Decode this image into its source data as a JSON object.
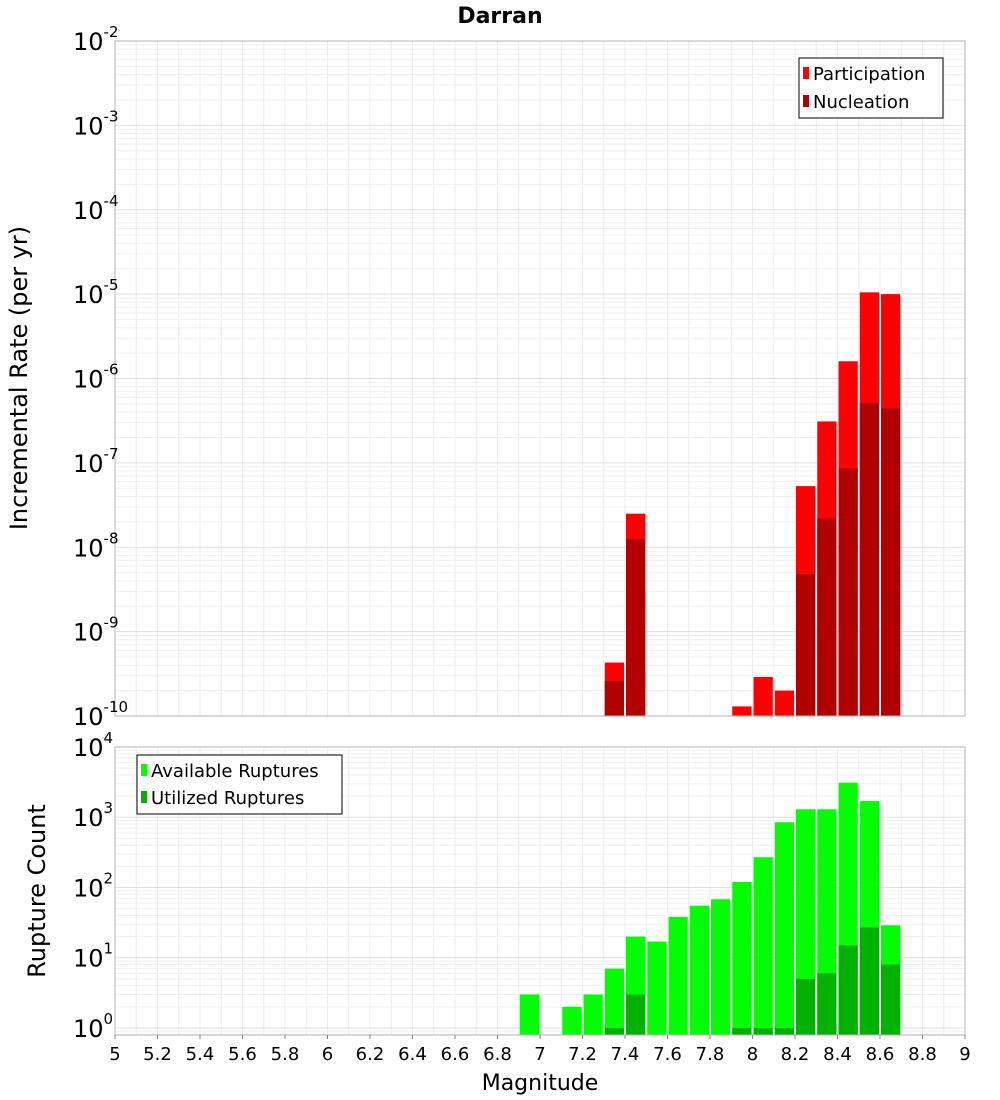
{
  "title": "Darran",
  "colors": {
    "participation": "#ff0000",
    "nucleation": "#b20000",
    "available": "#00ff00",
    "utilized": "#00b200",
    "grid": "#e6e6e6",
    "frame": "#b4b4b4"
  },
  "chart_data": [
    {
      "type": "bar",
      "panel": "top",
      "title": "Darran",
      "xlabel": "",
      "ylabel": "Incremental Rate (per yr)",
      "yscale": "log",
      "xlim": [
        5,
        9
      ],
      "ylim_exponents": [
        -10,
        -2
      ],
      "ytick_exponents": [
        -10,
        -9,
        -8,
        -7,
        -6,
        -5,
        -4,
        -3,
        -2
      ],
      "ytick_base": "10",
      "grid": true,
      "legend_position": "top-right",
      "bar_width": 0.1,
      "series": [
        {
          "name": "Participation",
          "color": "#ff0000",
          "points": [
            {
              "x": 7.35,
              "y": 4.3e-10
            },
            {
              "x": 7.45,
              "y": 2.5e-08
            },
            {
              "x": 7.95,
              "y": 1.3e-10
            },
            {
              "x": 8.05,
              "y": 2.9e-10
            },
            {
              "x": 8.15,
              "y": 2e-10
            },
            {
              "x": 8.25,
              "y": 5.3e-08
            },
            {
              "x": 8.35,
              "y": 3.1e-07
            },
            {
              "x": 8.45,
              "y": 1.6e-06
            },
            {
              "x": 8.55,
              "y": 1.05e-05
            },
            {
              "x": 8.65,
              "y": 1e-05
            }
          ]
        },
        {
          "name": "Nucleation",
          "color": "#b20000",
          "points": [
            {
              "x": 7.35,
              "y": 2.6e-10
            },
            {
              "x": 7.45,
              "y": 1.25e-08
            },
            {
              "x": 8.25,
              "y": 4.8e-09
            },
            {
              "x": 8.35,
              "y": 2.2e-08
            },
            {
              "x": 8.45,
              "y": 8.6e-08
            },
            {
              "x": 8.55,
              "y": 5.1e-07
            },
            {
              "x": 8.65,
              "y": 4.4e-07
            }
          ]
        }
      ]
    },
    {
      "type": "bar",
      "panel": "bottom",
      "xlabel": "Magnitude",
      "ylabel": "Rupture Count",
      "yscale": "log",
      "xlim": [
        5,
        9
      ],
      "ylim_exponents": [
        -0.1,
        4
      ],
      "ytick_exponents": [
        0,
        1,
        2,
        3,
        4
      ],
      "ytick_base": "10",
      "xticks": [
        "5",
        "5.2",
        "5.4",
        "5.6",
        "5.8",
        "6",
        "6.2",
        "6.4",
        "6.6",
        "6.8",
        "7",
        "7.2",
        "7.4",
        "7.6",
        "7.8",
        "8",
        "8.2",
        "8.4",
        "8.6",
        "8.8",
        "9"
      ],
      "grid": true,
      "legend_position": "top-left",
      "bar_width": 0.1,
      "series": [
        {
          "name": "Available Ruptures",
          "color": "#00ff00",
          "points": [
            {
              "x": 6.95,
              "y": 3
            },
            {
              "x": 7.15,
              "y": 2
            },
            {
              "x": 7.25,
              "y": 3
            },
            {
              "x": 7.35,
              "y": 7
            },
            {
              "x": 7.45,
              "y": 20
            },
            {
              "x": 7.55,
              "y": 17
            },
            {
              "x": 7.65,
              "y": 38
            },
            {
              "x": 7.75,
              "y": 55
            },
            {
              "x": 7.85,
              "y": 68
            },
            {
              "x": 7.95,
              "y": 120
            },
            {
              "x": 8.05,
              "y": 270
            },
            {
              "x": 8.15,
              "y": 850
            },
            {
              "x": 8.25,
              "y": 1300
            },
            {
              "x": 8.35,
              "y": 1300
            },
            {
              "x": 8.45,
              "y": 3100
            },
            {
              "x": 8.55,
              "y": 1700
            },
            {
              "x": 8.65,
              "y": 29
            }
          ]
        },
        {
          "name": "Utilized Ruptures",
          "color": "#00b200",
          "points": [
            {
              "x": 7.35,
              "y": 1
            },
            {
              "x": 7.45,
              "y": 3
            },
            {
              "x": 7.95,
              "y": 1
            },
            {
              "x": 8.05,
              "y": 1
            },
            {
              "x": 8.15,
              "y": 1
            },
            {
              "x": 8.25,
              "y": 5
            },
            {
              "x": 8.35,
              "y": 6
            },
            {
              "x": 8.45,
              "y": 15
            },
            {
              "x": 8.55,
              "y": 27
            },
            {
              "x": 8.65,
              "y": 8
            }
          ]
        }
      ]
    }
  ]
}
